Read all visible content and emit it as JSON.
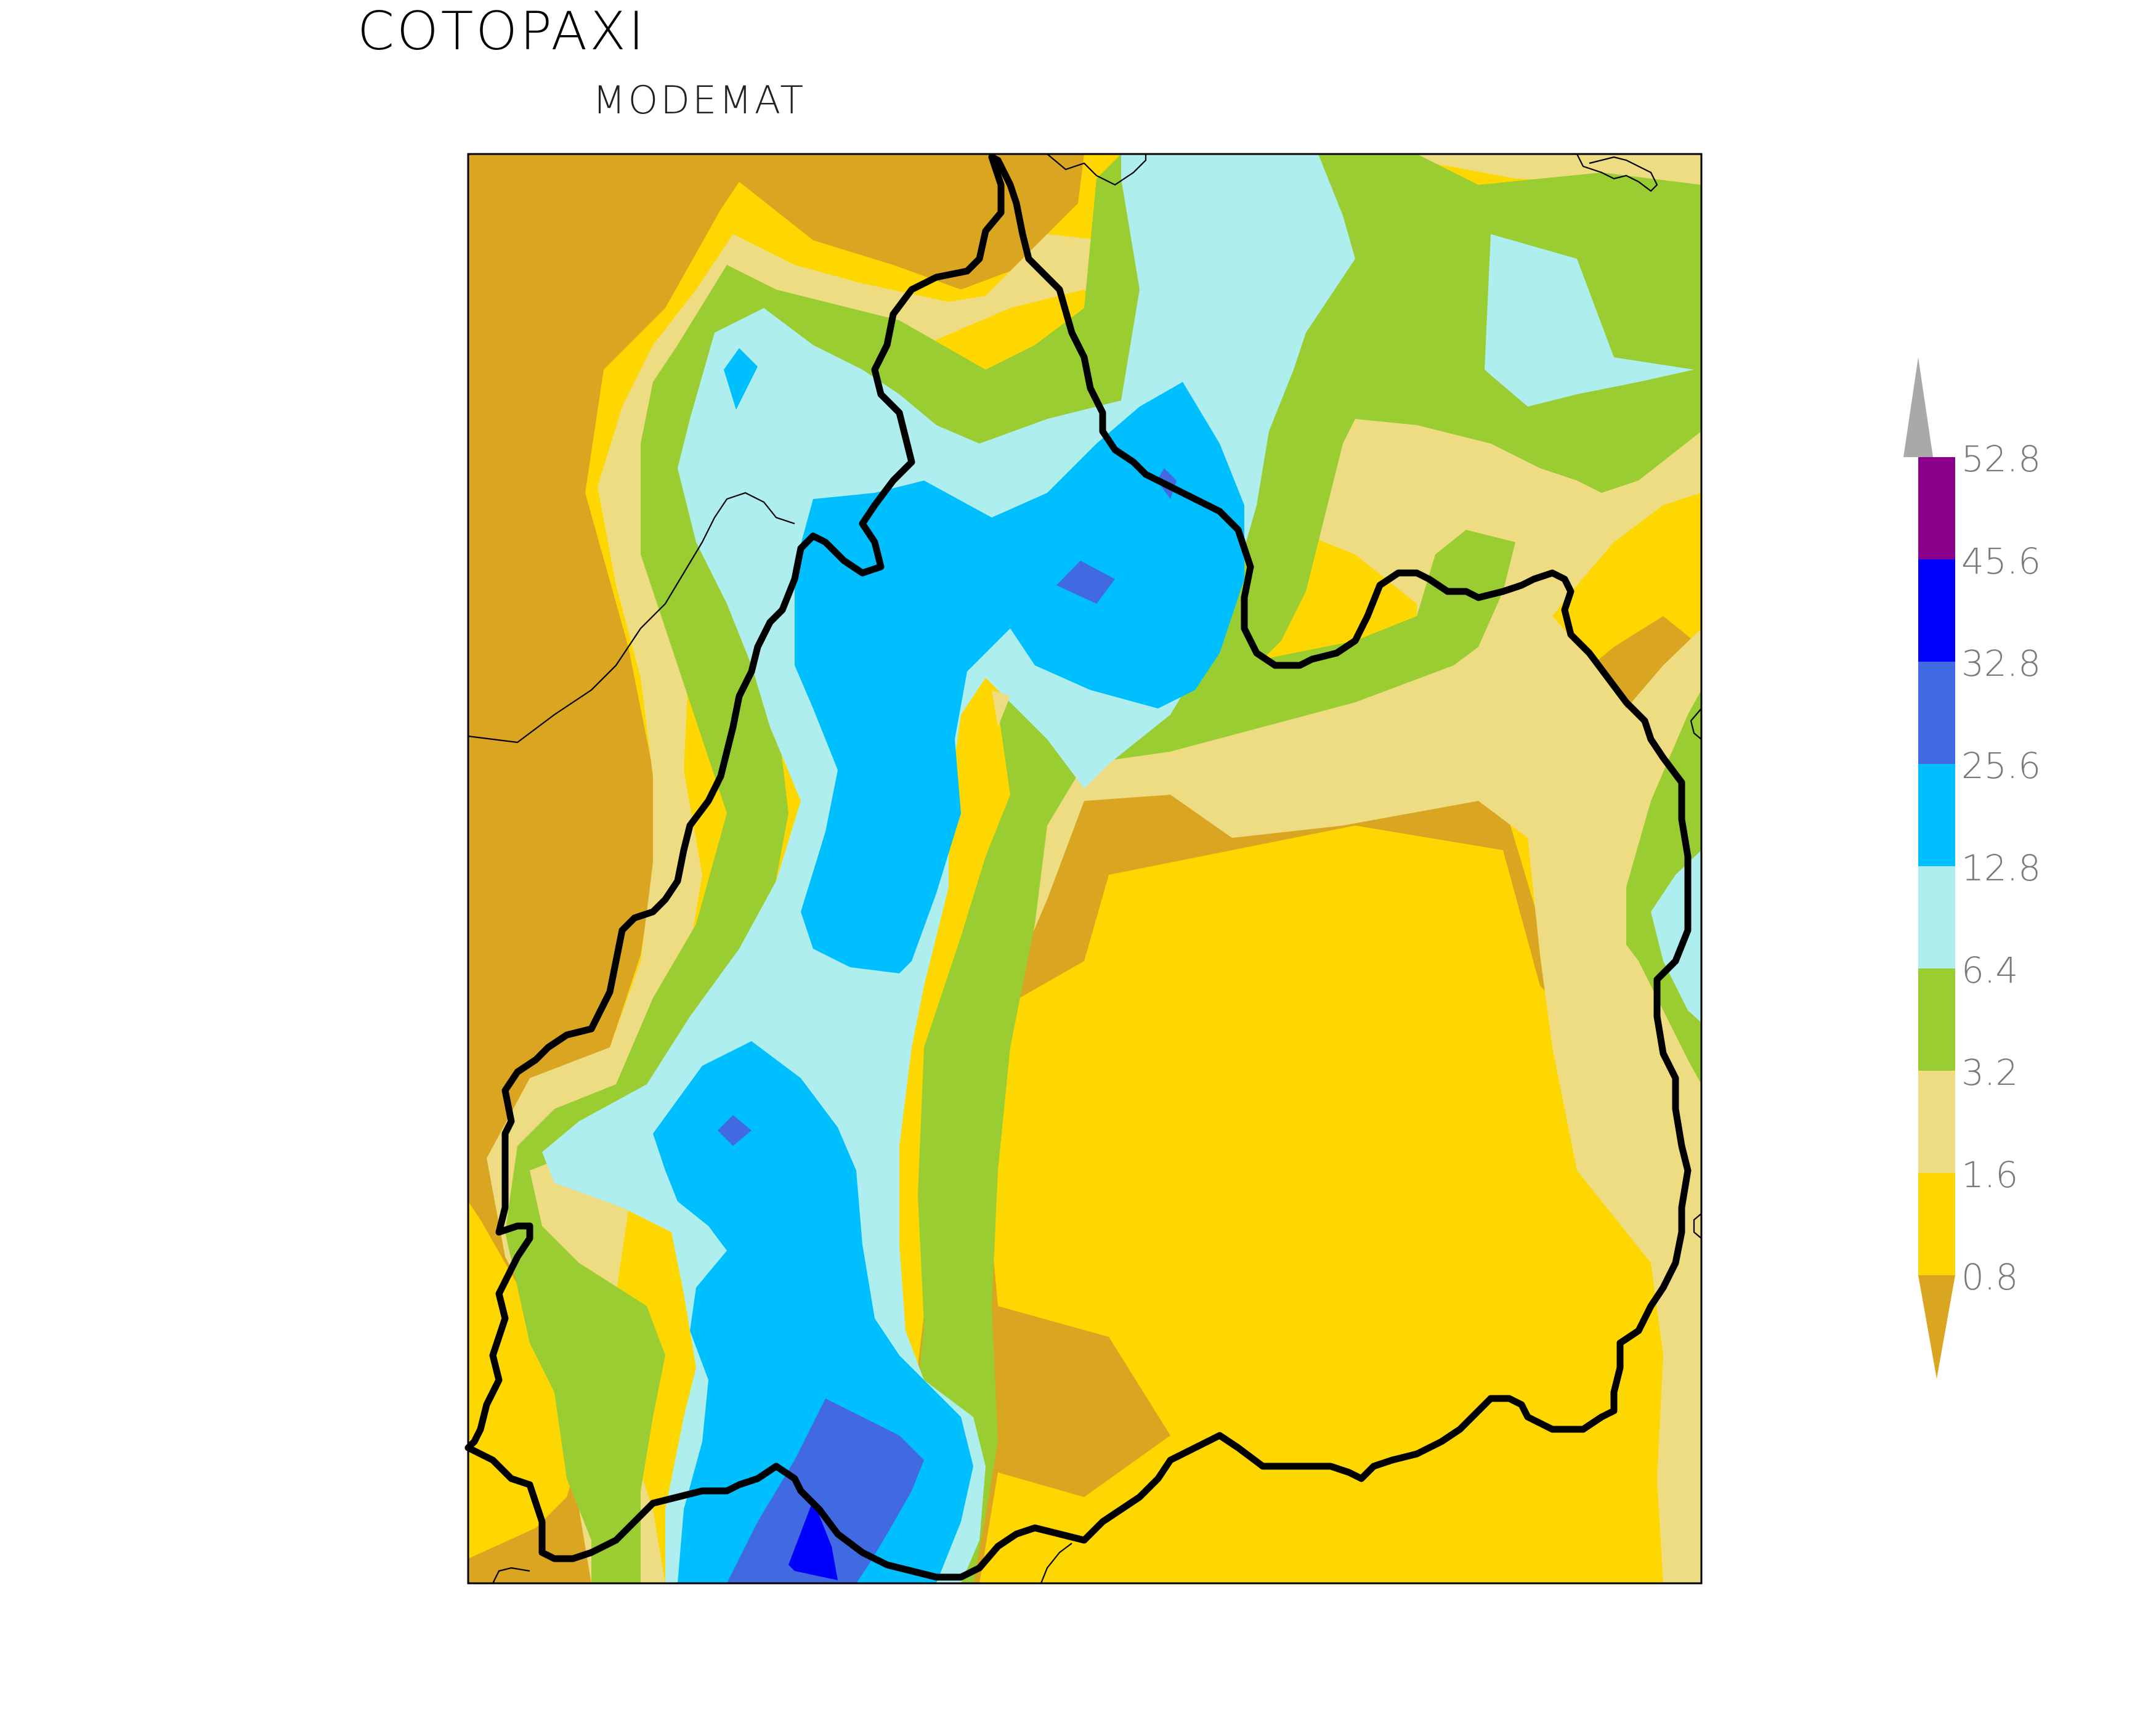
{
  "title": "COTOPAXI",
  "subtitle": "MODEMAT",
  "legend": {
    "levels": [
      "0.8",
      "1.6",
      "3.2",
      "6.4",
      "12.8",
      "25.6",
      "32.8",
      "45.6",
      "52.8"
    ],
    "colors": {
      "lt_0.8": "#DAA520",
      "0.8_1.6": "#FFD700",
      "1.6_3.2": "#EEDC82",
      "3.2_6.4": "#9ACD32",
      "6.4_12.8": "#AFEEEE",
      "12.8_25.6": "#00BFFF",
      "25.6_32.8": "#4169E1",
      "32.8_45.6": "#0000FF",
      "45.6_52.8": "#8B008B",
      "gt_52.8": "#A9A9A9"
    }
  },
  "map": {
    "boundary_color": "#000000"
  }
}
